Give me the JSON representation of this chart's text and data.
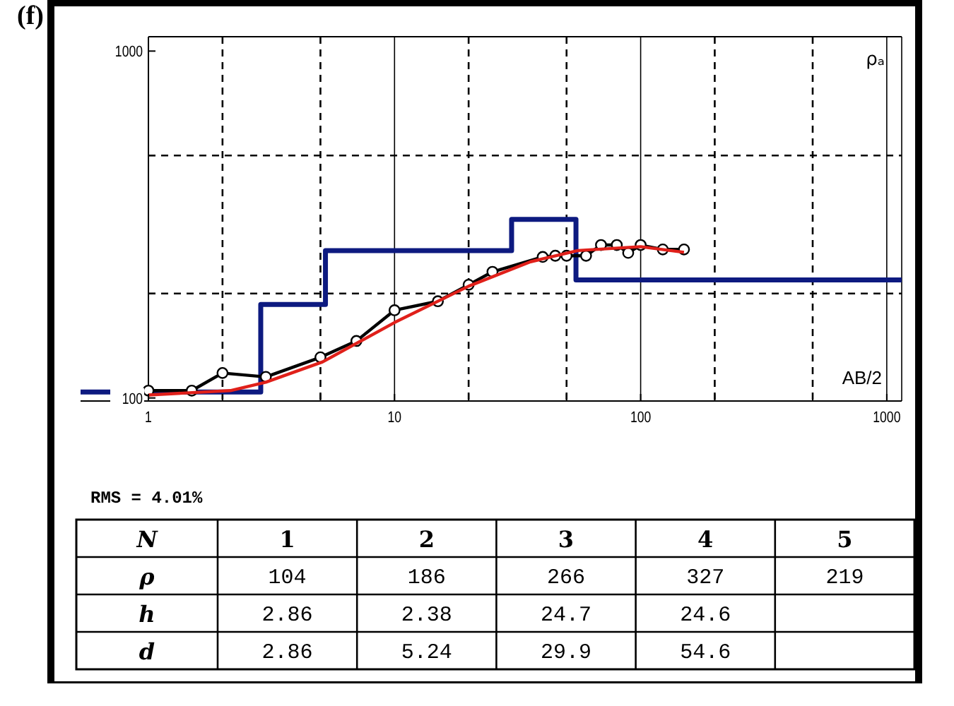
{
  "chart_data": [
    {
      "type": "line",
      "xlabel": "AB/2",
      "ylabel": "ρₐ",
      "annotations": [
        "(f)"
      ],
      "log": "xy",
      "grid": true,
      "xlim": [
        0.53,
        1150
      ],
      "ylim": [
        98,
        1100
      ],
      "xticks": [
        1,
        {
          "value": 2,
          "label": null
        },
        {
          "value": 5,
          "label": null
        },
        10,
        {
          "value": 20,
          "label": null
        },
        {
          "value": 50,
          "label": null
        },
        100,
        {
          "value": 200,
          "label": null
        },
        {
          "value": 500,
          "label": null
        },
        1000
      ],
      "yticks": [
        100,
        {
          "value": 200,
          "label": null
        },
        {
          "value": 500,
          "label": null
        },
        1000
      ],
      "series": [
        {
          "type": "step",
          "color": "#0d1a80",
          "x": [
            0.53,
            2.86,
            5.24,
            29.9,
            54.6,
            1150
          ],
          "values": [
            104,
            186,
            266,
            327,
            219,
            219
          ]
        },
        {
          "type": "line",
          "color": "#000000",
          "marker": "circle",
          "x": [
            1,
            1.5,
            2,
            3,
            5,
            7,
            10,
            15,
            20,
            25,
            40,
            45,
            50,
            60,
            69,
            80,
            89,
            100,
            123,
            150
          ],
          "values": [
            105,
            105,
            118,
            115,
            131,
            146,
            179,
            190,
            212,
            231,
            255,
            257,
            257,
            257,
            276,
            276,
            262,
            276,
            268,
            268
          ]
        },
        {
          "type": "line",
          "color": "#e0201a",
          "x": [
            1,
            2.15,
            3,
            5.1,
            10,
            20,
            35.7,
            55.6,
            100,
            150
          ],
          "values": [
            102,
            105,
            111,
            127,
            165,
            210,
            247,
            266,
            273,
            263
          ]
        }
      ]
    },
    {
      "type": "heatmap",
      "annotations": [
        "RMS = 4.01%"
      ],
      "xlabel": "N",
      "categories": [
        "1",
        "2",
        "3",
        "4",
        "5"
      ],
      "y_categories": [
        "ρ",
        "h",
        "d"
      ],
      "data_labels": true,
      "cells": [
        [
          104,
          186,
          266,
          327,
          219
        ],
        [
          2.86,
          2.38,
          24.7,
          24.6,
          null
        ],
        [
          2.86,
          5.24,
          29.9,
          54.6,
          null
        ]
      ]
    }
  ]
}
